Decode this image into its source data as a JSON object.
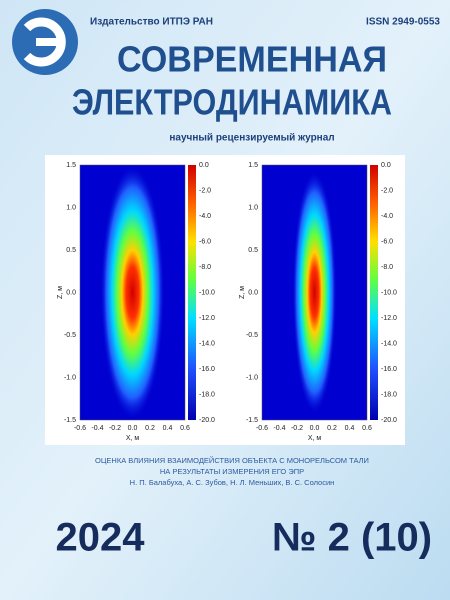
{
  "header": {
    "publisher": "Издательство ИТПЭ РАН",
    "issn": "ISSN 2949-0553",
    "title_line1": "СОВРЕМЕННАЯ",
    "title_line2": "ЭЛЕКТРОДИНАМИКА",
    "subtitle": "научный рецензируемый журнал"
  },
  "figures": [
    {
      "z_ticks": [
        "1.5",
        "1.0",
        "0.5",
        "0.0",
        "-0.5",
        "-1.0",
        "-1.5"
      ],
      "x_ticks": [
        "-0.6",
        "-0.4",
        "-0.2",
        "0.0",
        "0.2",
        "0.4",
        "0.6"
      ],
      "colorbar_ticks": [
        "0.0",
        "-2.0",
        "-4.0",
        "-6.0",
        "-8.0",
        "-10.0",
        "-12.0",
        "-14.0",
        "-16.0",
        "-18.0",
        "-20.0"
      ],
      "z_label": "Z, м",
      "x_label": "X, м"
    },
    {
      "z_ticks": [
        "1.5",
        "1.0",
        "0.5",
        "0.0",
        "-0.5",
        "-1.0",
        "-1.5"
      ],
      "x_ticks": [
        "-0.6",
        "-0.4",
        "-0.2",
        "0.0",
        "0.2",
        "0.4",
        "0.6"
      ],
      "colorbar_ticks": [
        "0.0",
        "-2.0",
        "-4.0",
        "-6.0",
        "-8.0",
        "-10.0",
        "-12.0",
        "-14.0",
        "-16.0",
        "-18.0",
        "-20.0"
      ],
      "z_label": "Z, м",
      "x_label": "X, м"
    }
  ],
  "article": {
    "title_line1": "ОЦЕНКА ВЛИЯНИЯ ВЗАИМОДЕЙСТВИЯ ОБЪЕКТА С МОНОРЕЛЬСОМ ТАЛИ",
    "title_line2": "НА РЕЗУЛЬТАТЫ ИЗМЕРЕНИЯ ЕГО ЭПР",
    "authors": "Н. П. Балабуха, А. С. Зубов, Н. Л. Меньших, В. С. Солосин"
  },
  "footer": {
    "year": "2024",
    "issue": "№ 2 (10)"
  }
}
